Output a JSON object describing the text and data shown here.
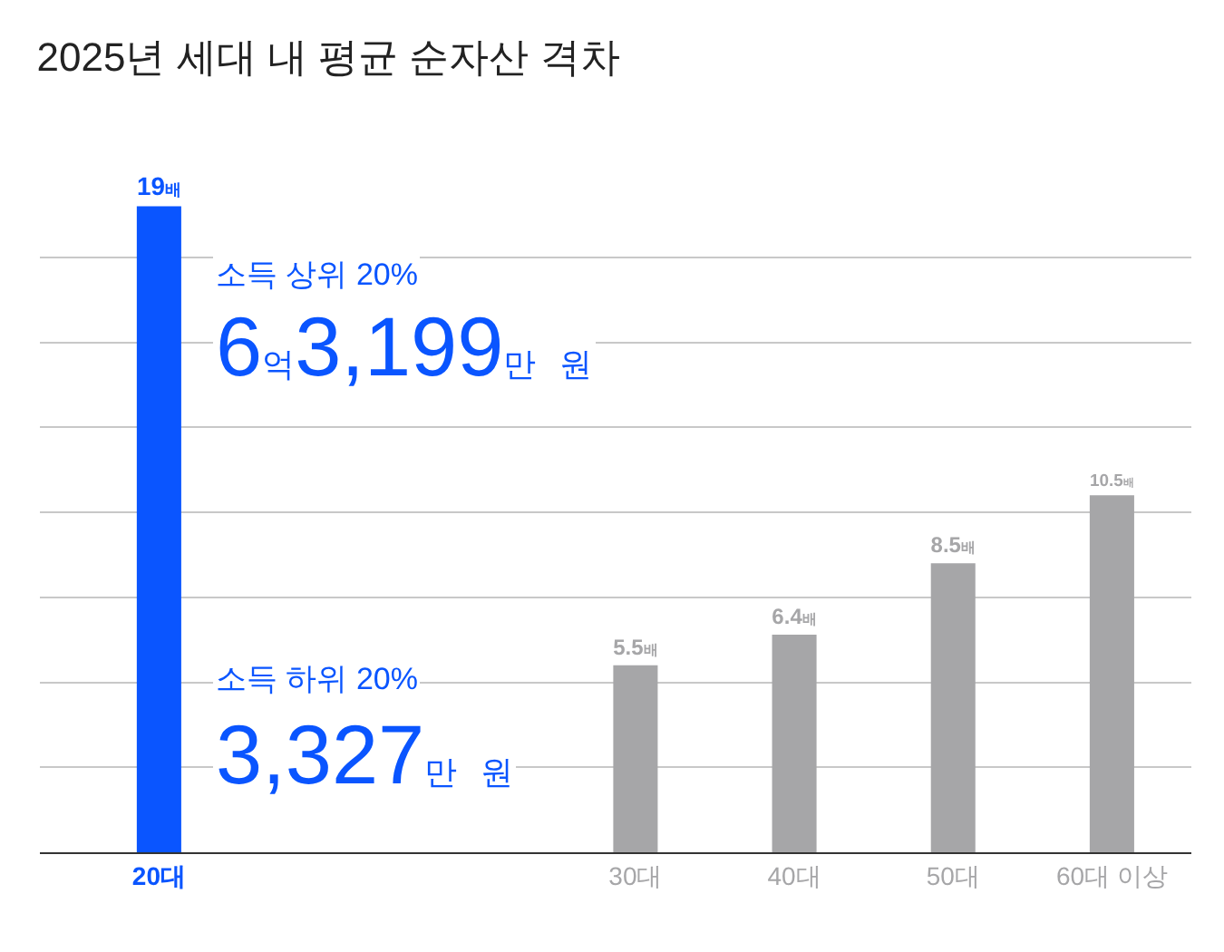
{
  "chart_data": {
    "type": "bar",
    "title": "2025년 세대 내 평균 순자산 격차",
    "categories": [
      "20대",
      null,
      null,
      "30대",
      "40대",
      "50대",
      "60대 이상"
    ],
    "values": [
      19,
      null,
      null,
      5.5,
      6.4,
      8.5,
      10.5
    ],
    "colors": [
      "#0a55ff",
      "#a6a6a8",
      "#a6a6a8",
      "#a6a6a8",
      "#a6a6a8",
      "#a6a6a8",
      "#a6a6a8"
    ],
    "value_labels": [
      "19배",
      null,
      null,
      "5.5배",
      "6.4배",
      "8.5배",
      "10.5배"
    ],
    "yticks": [
      {
        "value": 0,
        "label": null
      },
      {
        "value": 2.5,
        "label": null
      },
      {
        "value": 5,
        "label": null
      },
      {
        "value": 7.5,
        "label": null
      },
      {
        "value": 10,
        "label": null
      },
      {
        "value": 12.5,
        "label": null
      },
      {
        "value": 15,
        "label": null
      },
      {
        "value": 17.5,
        "label": null
      }
    ],
    "tick_labels": "x",
    "grid": "y",
    "annotations": [
      "소득 상위 20%",
      "6억3,199만 원",
      "소득 하위 20%",
      "3,327만 원"
    ]
  }
}
